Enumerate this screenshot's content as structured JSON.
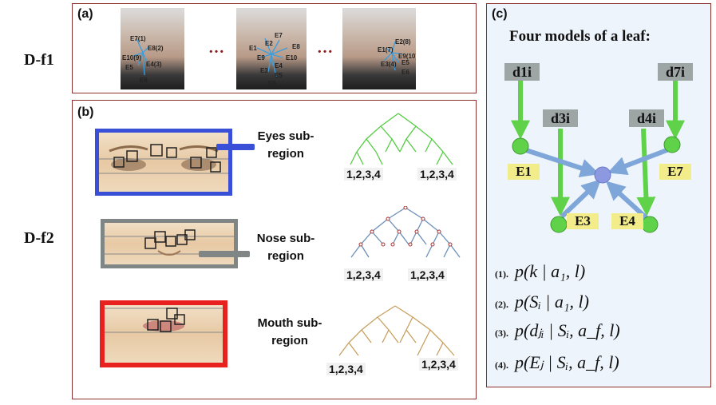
{
  "row_labels": {
    "top": "D-f1",
    "bottom": "D-f2"
  },
  "panel_a": {
    "tag": "(a)",
    "ellipsis": "…",
    "faces": [
      {
        "landmarks": [
          "E7(1)",
          "E8(2)",
          "E10(9)",
          "E5",
          "E4(3)",
          "E6"
        ]
      },
      {
        "landmarks": [
          "E7",
          "E2",
          "E8",
          "E1",
          "E9",
          "E10",
          "E4",
          "E3",
          "E5",
          "E6"
        ]
      },
      {
        "landmarks": [
          "E2(8)",
          "E1(7)",
          "E9(10)",
          "E3(4)",
          "E5",
          "E6"
        ]
      }
    ]
  },
  "panel_b": {
    "tag": "(b)",
    "regions": [
      {
        "label": "Eyes sub-region",
        "label_lines": [
          "Eyes sub-",
          "region"
        ],
        "color": "#3a4fd8",
        "tree_color": "#55cc44",
        "leaves": [
          "1,2,3,4",
          "1,2,3,4"
        ]
      },
      {
        "label": "Nose sub-region",
        "label_lines": [
          "Nose sub-",
          "region"
        ],
        "color": "#808585",
        "tree_color": "#6b8fb8",
        "leaves": [
          "1,2,3,4",
          "1,2,3,4"
        ]
      },
      {
        "label": "Mouth sub-region",
        "label_lines": [
          "Mouth sub-",
          "region"
        ],
        "color": "#e8201e",
        "tree_color": "#c8a060",
        "leaves": [
          "1,2,3,4",
          "1,2,3,4"
        ]
      }
    ]
  },
  "panel_c": {
    "tag": "(c)",
    "title": "Four models of a leaf:",
    "inputs": [
      "d1i",
      "d7i",
      "d3i",
      "d4i"
    ],
    "nodes": [
      "E1",
      "E7",
      "E3",
      "E4"
    ],
    "formulas": [
      {
        "num": "(1).",
        "text": "p(k | a₁, l)"
      },
      {
        "num": "(2).",
        "text": "p(Sᵢ | a₁, l)"
      },
      {
        "num": "(3).",
        "text": "p(dⱼᵢ | Sᵢ, a_f, l)"
      },
      {
        "num": "(4).",
        "text": "p(Eⱼ | Sᵢ, a_f, l)"
      }
    ],
    "colors": {
      "arrow_green": "#5fd24a",
      "arrow_blue": "#7fa6d8",
      "bg": "#eef4fb",
      "center_node": "#8c98e0"
    }
  }
}
